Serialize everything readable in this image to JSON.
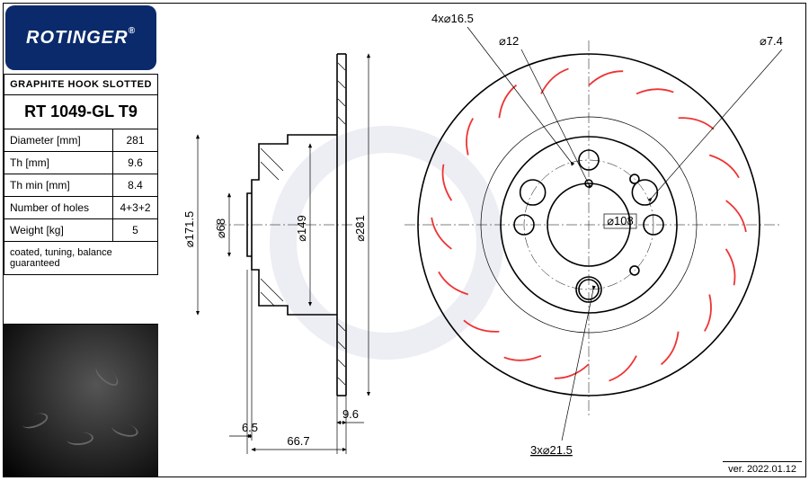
{
  "brand": "ROTINGER",
  "product_type": "GRAPHITE HOOK SLOTTED",
  "part_number": "RT 1049-GL T9",
  "specs": [
    {
      "label": "Diameter [mm]",
      "value": "281"
    },
    {
      "label": "Th [mm]",
      "value": "9.6"
    },
    {
      "label": "Th min [mm]",
      "value": "8.4"
    },
    {
      "label": "Number of holes",
      "value": "4+3+2"
    },
    {
      "label": "Weight [kg]",
      "value": "5"
    }
  ],
  "note": "coated, tuning, balance guaranteed",
  "version": "ver. 2022.01.12",
  "colors": {
    "brand_blue": "#0a2a6b",
    "hook_red": "#e03030",
    "line": "#000000",
    "bg": "#ffffff"
  },
  "side_view": {
    "dims": {
      "d171_5": "⌀171.5",
      "d68": "⌀68",
      "d149": "⌀149",
      "d281": "⌀281",
      "t6_5": "6.5",
      "t9_6": "9.6",
      "t66_7": "66.7"
    }
  },
  "front_view": {
    "outer_d": 281,
    "callouts": {
      "holes4": "4x⌀16.5",
      "d12": "⌀12",
      "d7_4": "⌀7.4",
      "pcd": "⌀108",
      "holes3": "3x⌀21.5"
    },
    "hook_count": 18
  }
}
